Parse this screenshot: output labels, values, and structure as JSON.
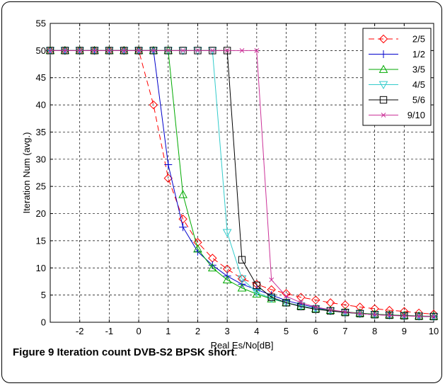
{
  "chart_data": {
    "type": "line",
    "title": "",
    "xlabel": "Real Es/No[dB]",
    "ylabel": "Iteration Num (avg.)",
    "xlim": [
      -3,
      10
    ],
    "ylim": [
      0,
      55
    ],
    "xticks": [
      -2,
      -1,
      0,
      1,
      2,
      3,
      4,
      5,
      6,
      7,
      8,
      9,
      10
    ],
    "xtick_labels": [
      "-2",
      "-1",
      "0",
      "1",
      "2",
      "3",
      "4",
      "5",
      "6",
      "7",
      "8",
      "9",
      "10"
    ],
    "yticks": [
      0,
      5,
      10,
      15,
      20,
      25,
      30,
      35,
      40,
      45,
      50,
      55
    ],
    "ytick_labels": [
      "0",
      "5",
      "10",
      "15",
      "20",
      "25",
      "30",
      "35",
      "40",
      "45",
      "50",
      "55"
    ],
    "grid": true,
    "legend_position": "top-right",
    "x": [
      -3,
      -2.5,
      -2,
      -1.5,
      -1,
      -0.5,
      0,
      0.5,
      1,
      1.5,
      2,
      2.5,
      3,
      3.5,
      4,
      4.5,
      5,
      5.5,
      6,
      6.5,
      7,
      7.5,
      8,
      8.5,
      9,
      9.5,
      10
    ],
    "series": [
      {
        "name": "2/5",
        "color": "#ff0000",
        "marker": "diamond",
        "dash": "8,5",
        "values": [
          50,
          50,
          50,
          50,
          50,
          50,
          50,
          40,
          26.5,
          19,
          14.7,
          11.8,
          9.8,
          8,
          7,
          6,
          5.3,
          4.6,
          4.1,
          3.6,
          3.2,
          2.8,
          2.5,
          2.2,
          2,
          1.7,
          1.5
        ]
      },
      {
        "name": "1/2",
        "color": "#0000cc",
        "marker": "plus",
        "dash": "",
        "values": [
          50,
          50,
          50,
          50,
          50,
          50,
          50,
          50,
          29,
          17.5,
          13,
          10.5,
          8.5,
          7,
          6,
          5,
          4,
          3.3,
          2.7,
          2.2,
          1.9,
          1.6,
          1.4,
          1.3,
          1.2,
          1.1,
          1.05
        ]
      },
      {
        "name": "3/5",
        "color": "#00aa00",
        "marker": "triangle-up",
        "dash": "",
        "values": [
          50,
          50,
          50,
          50,
          50,
          50,
          50,
          50,
          50,
          23.5,
          13.5,
          10,
          7.8,
          6.3,
          5.2,
          4.3,
          3.6,
          3,
          2.5,
          2.2,
          1.9,
          1.7,
          1.5,
          1.35,
          1.25,
          1.15,
          1.1
        ]
      },
      {
        "name": "4/5",
        "color": "#33cccc",
        "marker": "triangle-down",
        "dash": "",
        "values": [
          50,
          50,
          50,
          50,
          50,
          50,
          50,
          50,
          50,
          50,
          50,
          50,
          16.5,
          8,
          5.5,
          4.4,
          3.6,
          3,
          2.5,
          2.1,
          1.8,
          1.6,
          1.45,
          1.3,
          1.2,
          1.12,
          1.05
        ]
      },
      {
        "name": "5/6",
        "color": "#000000",
        "marker": "square",
        "dash": "",
        "values": [
          50,
          50,
          50,
          50,
          50,
          50,
          50,
          50,
          50,
          50,
          50,
          50,
          50,
          11.5,
          6.8,
          4.6,
          3.6,
          2.9,
          2.4,
          2.1,
          1.8,
          1.6,
          1.4,
          1.3,
          1.2,
          1.1,
          1.05
        ]
      },
      {
        "name": "9/10",
        "color": "#cc3399",
        "marker": "x",
        "dash": "",
        "values": [
          50,
          50,
          50,
          50,
          50,
          50,
          50,
          50,
          50,
          50,
          50,
          50,
          50,
          50,
          50,
          7.8,
          4.8,
          3.6,
          2.8,
          2.3,
          1.9,
          1.6,
          1.4,
          1.25,
          1.15,
          1.1,
          1.05
        ]
      }
    ]
  },
  "caption": {
    "label": "Figure 9",
    "title": "Iteration count DVB-S2 BPSK short",
    "period": "."
  }
}
